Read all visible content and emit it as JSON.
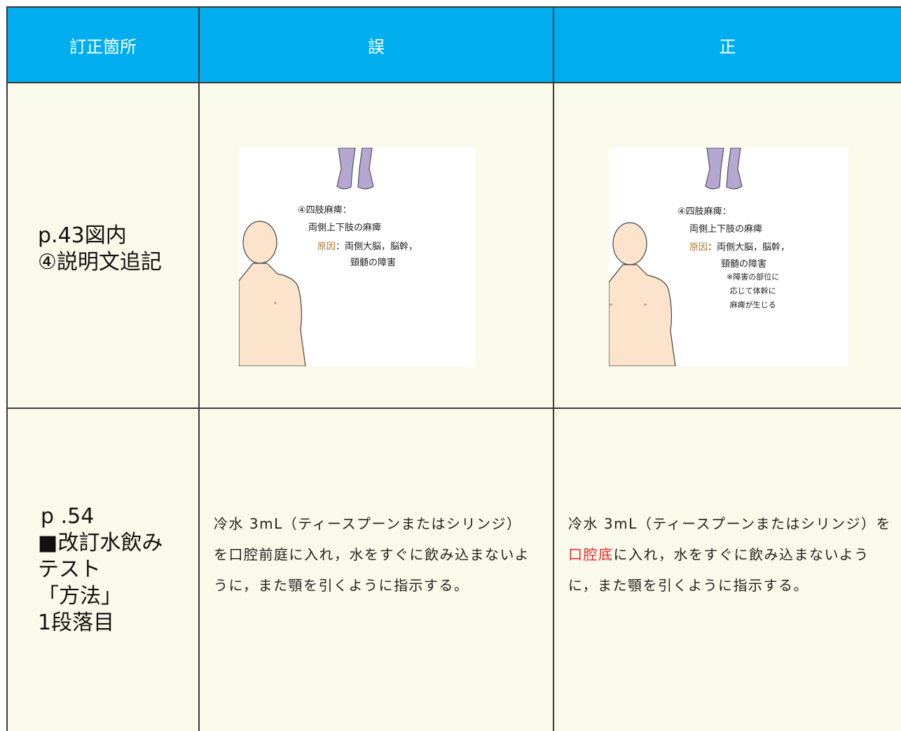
{
  "header": [
    "訂正箇所",
    "誤",
    "正"
  ],
  "rows": [
    {
      "location": [
        "p.43図内",
        "④説明文追記"
      ],
      "wrong": {
        "title": "④四肢麻痺：",
        "line1": "両側上下肢の麻痺",
        "cause_label": "原因",
        "cause": "：両側大脳，脳幹，",
        "cause2": "頸髄の障害"
      },
      "correct": {
        "title": "④四肢麻痺：",
        "line1": "両側上下肢の麻痺",
        "cause_label": "原因",
        "cause": "：両側大脳，脳幹，",
        "cause2": "頸髄の障害",
        "note": [
          "※障害の部位に",
          "応じて体幹に",
          "麻痺が生じる"
        ]
      }
    },
    {
      "location": [
        "p .54",
        "■改訂水飲み",
        "テスト",
        "「方法」",
        "1段落目"
      ],
      "wrong": [
        "冷水 3mL（ティースプーンまたはシリンジ）を口腔前庭に入れ，水をすぐに飲み込まないように，また顎を引くように指示する。"
      ],
      "correct": [
        "冷水 3mL（ティースプーンまたはシリンジ）を",
        "口腔底",
        "に入れ，水をすぐに飲み込まないように，また顎を引くように指示する。"
      ]
    }
  ]
}
